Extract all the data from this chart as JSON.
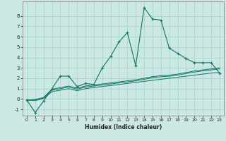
{
  "xlabel": "Humidex (Indice chaleur)",
  "bg_color": "#cce8e4",
  "grid_color": "#aad4cc",
  "line_color": "#1a7a6a",
  "x_values": [
    0,
    1,
    2,
    3,
    4,
    5,
    6,
    7,
    8,
    9,
    10,
    11,
    12,
    13,
    14,
    15,
    16,
    17,
    18,
    19,
    20,
    21,
    22,
    23
  ],
  "series_main": [
    -0.1,
    -1.3,
    -0.2,
    1.0,
    2.2,
    2.2,
    1.2,
    1.5,
    1.4,
    3.0,
    4.1,
    5.5,
    6.4,
    3.2,
    8.8,
    7.7,
    7.6,
    4.9,
    4.4,
    3.9,
    3.5,
    3.5,
    3.5,
    2.5
  ],
  "series_line1": [
    -0.1,
    -0.15,
    0.05,
    0.7,
    0.85,
    1.0,
    0.8,
    1.0,
    1.1,
    1.2,
    1.3,
    1.4,
    1.5,
    1.6,
    1.7,
    1.8,
    1.9,
    2.0,
    2.1,
    2.2,
    2.3,
    2.4,
    2.5,
    2.55
  ],
  "series_line2": [
    -0.1,
    -0.1,
    0.1,
    0.85,
    1.0,
    1.15,
    0.95,
    1.15,
    1.25,
    1.35,
    1.45,
    1.55,
    1.65,
    1.75,
    1.9,
    2.05,
    2.15,
    2.2,
    2.3,
    2.45,
    2.6,
    2.7,
    2.8,
    2.9
  ],
  "series_line3": [
    -0.1,
    -0.05,
    0.15,
    0.95,
    1.1,
    1.25,
    1.05,
    1.25,
    1.35,
    1.45,
    1.55,
    1.65,
    1.75,
    1.85,
    2.0,
    2.15,
    2.25,
    2.3,
    2.4,
    2.55,
    2.7,
    2.8,
    2.9,
    3.0
  ],
  "ylim": [
    -1.6,
    9.4
  ],
  "yticks": [
    -1,
    0,
    1,
    2,
    3,
    4,
    5,
    6,
    7,
    8
  ],
  "xlim": [
    -0.5,
    23.5
  ],
  "xticks": [
    0,
    1,
    2,
    3,
    4,
    5,
    6,
    7,
    8,
    9,
    10,
    11,
    12,
    13,
    14,
    15,
    16,
    17,
    18,
    19,
    20,
    21,
    22,
    23
  ]
}
